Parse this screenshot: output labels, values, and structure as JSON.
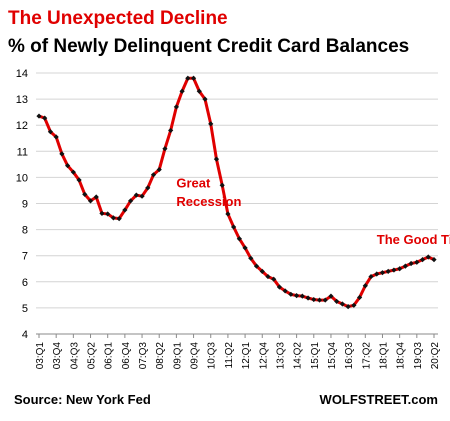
{
  "chart_data": {
    "type": "line",
    "title": "The Unexpected Decline",
    "subtitle": "% of Newly Delinquent Credit Card Balances",
    "source": "Source: New York Fed",
    "credit": "WOLFSTREET.com",
    "annotations": [
      {
        "text": "Great",
        "x": "09Q1",
        "y": 9.62
      },
      {
        "text": "Recession",
        "x": "09Q1",
        "y": 8.9
      },
      {
        "text": "The Good Times",
        "x": "17Q4",
        "y": 7.45
      }
    ],
    "ylim": [
      4,
      14
    ],
    "yticks": [
      4,
      5,
      6,
      7,
      8,
      9,
      10,
      11,
      12,
      13,
      14
    ],
    "xtick_labels": [
      "03:Q1",
      "03:Q4",
      "04:Q3",
      "05:Q2",
      "06:Q1",
      "06:Q4",
      "07:Q3",
      "08:Q2",
      "09:Q1",
      "09:Q4",
      "10:Q3",
      "11:Q2",
      "12:Q1",
      "12:Q4",
      "13:Q3",
      "14:Q2",
      "15:Q1",
      "15:Q4",
      "16:Q3",
      "17:Q2",
      "18:Q1",
      "18:Q4",
      "19:Q3",
      "20:Q2"
    ],
    "grid": "horizontal",
    "line_color": "#e00000",
    "marker_color": "#111111",
    "title_color": "#e00000",
    "series": [
      {
        "x": [
          "03Q1",
          "03Q2",
          "03Q3",
          "03Q4",
          "04Q1",
          "04Q2",
          "04Q3",
          "04Q4",
          "05Q1",
          "05Q2",
          "05Q3",
          "05Q4",
          "06Q1",
          "06Q2",
          "06Q3",
          "06Q4",
          "07Q1",
          "07Q2",
          "07Q3",
          "07Q4",
          "08Q1",
          "08Q2",
          "08Q3",
          "08Q4",
          "09Q1",
          "09Q2",
          "09Q3",
          "09Q4",
          "10Q1",
          "10Q2",
          "10Q3",
          "10Q4",
          "11Q1",
          "11Q2",
          "11Q3",
          "11Q4",
          "12Q1",
          "12Q2",
          "12Q3",
          "12Q4",
          "13Q1",
          "13Q2",
          "13Q3",
          "13Q4",
          "14Q1",
          "14Q2",
          "14Q3",
          "14Q4",
          "15Q1",
          "15Q2",
          "15Q3",
          "15Q4",
          "16Q1",
          "16Q2",
          "16Q3",
          "16Q4",
          "17Q1",
          "17Q2",
          "17Q3",
          "17Q4",
          "18Q1",
          "18Q2",
          "18Q3",
          "18Q4",
          "19Q1",
          "19Q2",
          "19Q3",
          "19Q4",
          "20Q1",
          "20Q2"
        ],
        "values": [
          12.35,
          12.27,
          11.75,
          11.55,
          10.9,
          10.45,
          10.2,
          9.9,
          9.35,
          9.1,
          9.25,
          8.62,
          8.6,
          8.45,
          8.42,
          8.75,
          9.1,
          9.32,
          9.28,
          9.6,
          10.1,
          10.3,
          11.1,
          11.8,
          12.7,
          13.3,
          13.8,
          13.8,
          13.3,
          13.0,
          12.05,
          10.7,
          9.7,
          8.6,
          8.1,
          7.65,
          7.3,
          6.9,
          6.6,
          6.4,
          6.2,
          6.1,
          5.8,
          5.65,
          5.52,
          5.47,
          5.45,
          5.38,
          5.32,
          5.3,
          5.3,
          5.45,
          5.25,
          5.15,
          5.05,
          5.1,
          5.4,
          5.85,
          6.2,
          6.3,
          6.35,
          6.4,
          6.45,
          6.5,
          6.6,
          6.7,
          6.75,
          6.85,
          6.95,
          6.85
        ]
      }
    ]
  }
}
